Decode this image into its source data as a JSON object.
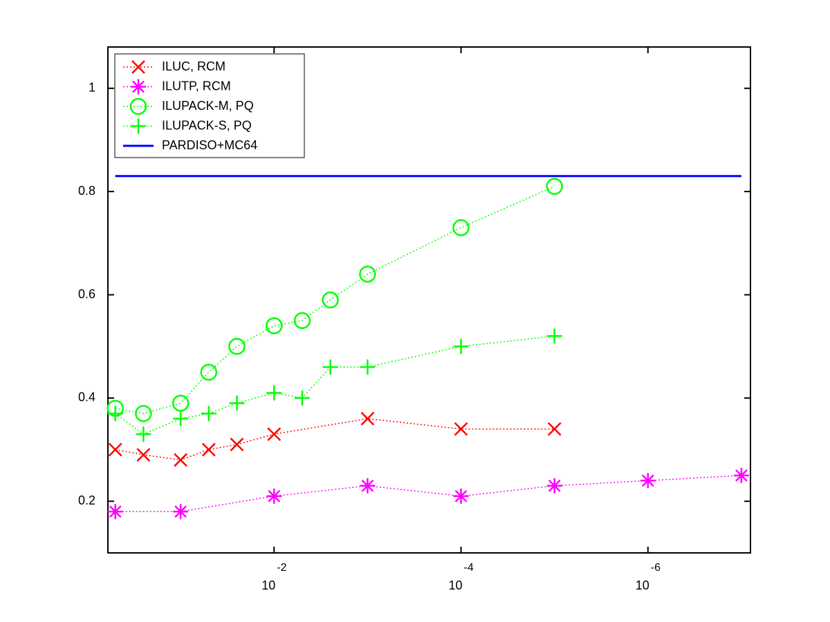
{
  "chart_data": {
    "type": "line",
    "xscale": "log",
    "xlim": [
      0.6,
      8e-08
    ],
    "ylim": [
      0.1,
      1.08
    ],
    "xticks": [
      {
        "value": 0.01,
        "label": "10",
        "exponent": "-2"
      },
      {
        "value": 0.0001,
        "label": "10",
        "exponent": "-4"
      },
      {
        "value": 1e-06,
        "label": "10",
        "exponent": "-6"
      }
    ],
    "yticks": [
      0.2,
      0.4,
      0.6,
      0.8,
      1
    ],
    "legend": "upper-left",
    "series": [
      {
        "name": "ILUC, RCM",
        "color": "#ff0000",
        "marker": "x",
        "linestyle": "dotted",
        "x": [
          0.5,
          0.25,
          0.1,
          0.05,
          0.025,
          0.01,
          0.001,
          0.0001,
          1e-05
        ],
        "values": [
          0.3,
          0.29,
          0.28,
          0.3,
          0.31,
          0.33,
          0.36,
          0.34,
          0.34
        ]
      },
      {
        "name": "ILUTP, RCM",
        "color": "#ff00ff",
        "marker": "star",
        "linestyle": "dotted",
        "x": [
          0.5,
          0.1,
          0.01,
          0.001,
          0.0001,
          1e-05,
          1e-06,
          1e-07
        ],
        "values": [
          0.18,
          0.18,
          0.21,
          0.23,
          0.21,
          0.23,
          0.24,
          0.25
        ]
      },
      {
        "name": "ILUPACK-M, PQ",
        "color": "#00ff00",
        "marker": "circle",
        "linestyle": "dotted",
        "x": [
          0.5,
          0.25,
          0.1,
          0.05,
          0.025,
          0.01,
          0.005,
          0.0025,
          0.001,
          0.0001,
          1e-05
        ],
        "values": [
          0.38,
          0.37,
          0.39,
          0.45,
          0.5,
          0.54,
          0.55,
          0.59,
          0.64,
          0.73,
          0.81
        ]
      },
      {
        "name": "ILUPACK-S, PQ",
        "color": "#00ff00",
        "marker": "plus",
        "linestyle": "dotted",
        "x": [
          0.5,
          0.25,
          0.1,
          0.05,
          0.025,
          0.01,
          0.005,
          0.0025,
          0.001,
          0.0001,
          1e-05
        ],
        "values": [
          0.37,
          0.33,
          0.36,
          0.37,
          0.39,
          0.41,
          0.4,
          0.46,
          0.46,
          0.5,
          0.52
        ]
      },
      {
        "name": "PARDISO+MC64",
        "color": "#0000ff",
        "marker": "none",
        "linestyle": "solid",
        "x": [
          0.5,
          1e-07
        ],
        "values": [
          0.83,
          0.83
        ]
      }
    ]
  }
}
